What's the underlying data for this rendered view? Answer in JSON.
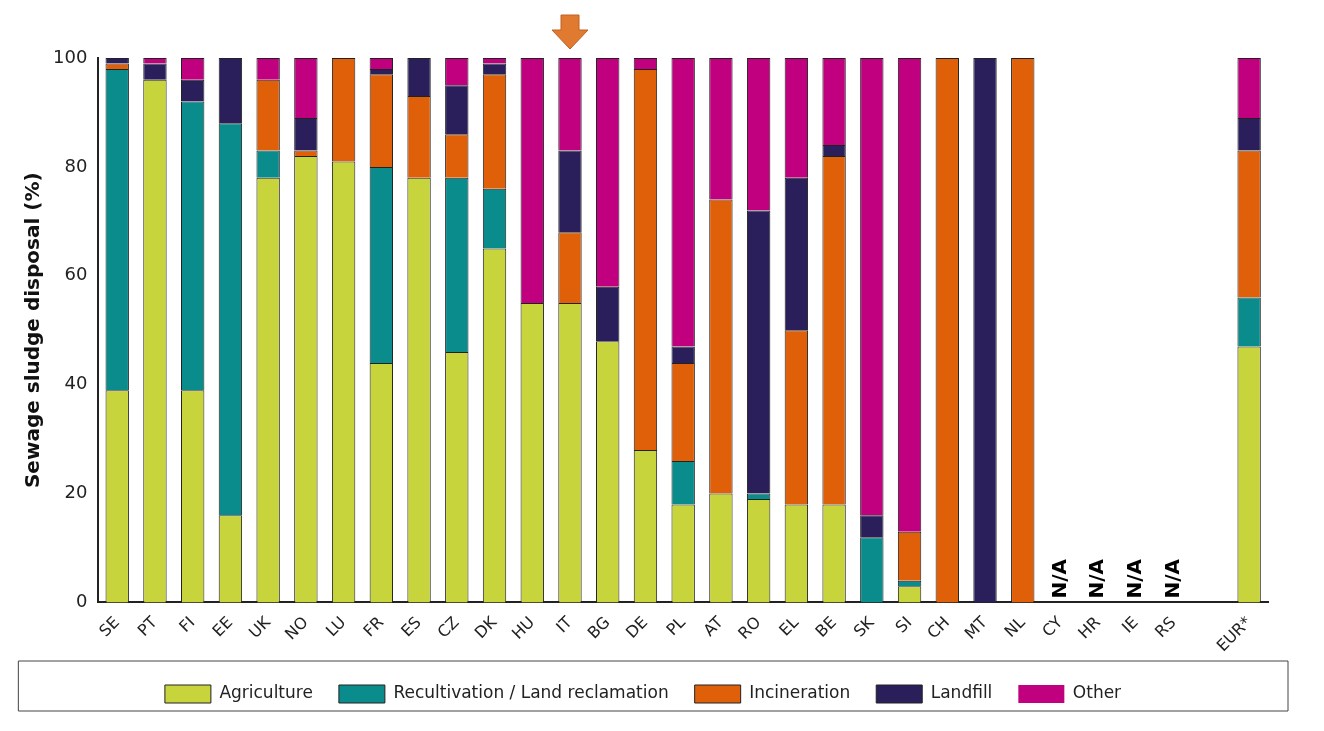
{
  "chart_data": {
    "type": "bar",
    "stacked": true,
    "ylabel": "Sewage sludge disposal (%)",
    "categories": [
      "SE",
      "PT",
      "FI",
      "EE",
      "UK",
      "NO",
      "LU",
      "FR",
      "ES",
      "CZ",
      "DK",
      "HU",
      "IT",
      "BG",
      "DE",
      "PL",
      "AT",
      "RO",
      "EL",
      "BE",
      "SK",
      "SI",
      "CH",
      "MT",
      "NL",
      "CY",
      "HR",
      "IE",
      "RS",
      null,
      "EUR*"
    ],
    "series": [
      {
        "name": "Agriculture",
        "color": "#c8d43c",
        "values": [
          39,
          96,
          39,
          16,
          78,
          82,
          81,
          44,
          78,
          46,
          65,
          55,
          55,
          48,
          28,
          18,
          20,
          19,
          18,
          18,
          0,
          3,
          0,
          0,
          0,
          null,
          null,
          null,
          null,
          null,
          47
        ]
      },
      {
        "name": "Recultivation / Land reclamation",
        "color": "#0a8c8c",
        "values": [
          59,
          0,
          53,
          72,
          5,
          0,
          0,
          36,
          0,
          32,
          11,
          0,
          0,
          0,
          0,
          8,
          0,
          1,
          0,
          0,
          12,
          1,
          0,
          0,
          0,
          null,
          null,
          null,
          null,
          null,
          9
        ]
      },
      {
        "name": "Incineration",
        "color": "#e0600a",
        "values": [
          1,
          0,
          0,
          0,
          13,
          1,
          19,
          17,
          15,
          8,
          21,
          0,
          13,
          0,
          70,
          18,
          54,
          0,
          32,
          64,
          0,
          9,
          100,
          0,
          100,
          null,
          null,
          null,
          null,
          null,
          27
        ]
      },
      {
        "name": "Landfill",
        "color": "#2a1f5a",
        "values": [
          1,
          3,
          4,
          12,
          0,
          6,
          0,
          1,
          7,
          9,
          2,
          0,
          15,
          10,
          0,
          3,
          0,
          52,
          28,
          2,
          4,
          0,
          0,
          100,
          0,
          null,
          null,
          null,
          null,
          null,
          6
        ]
      },
      {
        "name": "Other",
        "color": "#c0007e",
        "values": [
          0,
          1,
          4,
          0,
          4,
          11,
          0,
          2,
          0,
          5,
          1,
          45,
          17,
          42,
          2,
          53,
          26,
          28,
          22,
          16,
          84,
          87,
          0,
          0,
          0,
          null,
          null,
          null,
          null,
          null,
          11
        ]
      }
    ],
    "annotations": [
      "N/A",
      "N/A",
      "N/A",
      "N/A"
    ],
    "ylim": [
      0,
      100
    ],
    "yticks": [
      0,
      20,
      40,
      60,
      80,
      100
    ],
    "grid": false,
    "legend": "bottom"
  }
}
